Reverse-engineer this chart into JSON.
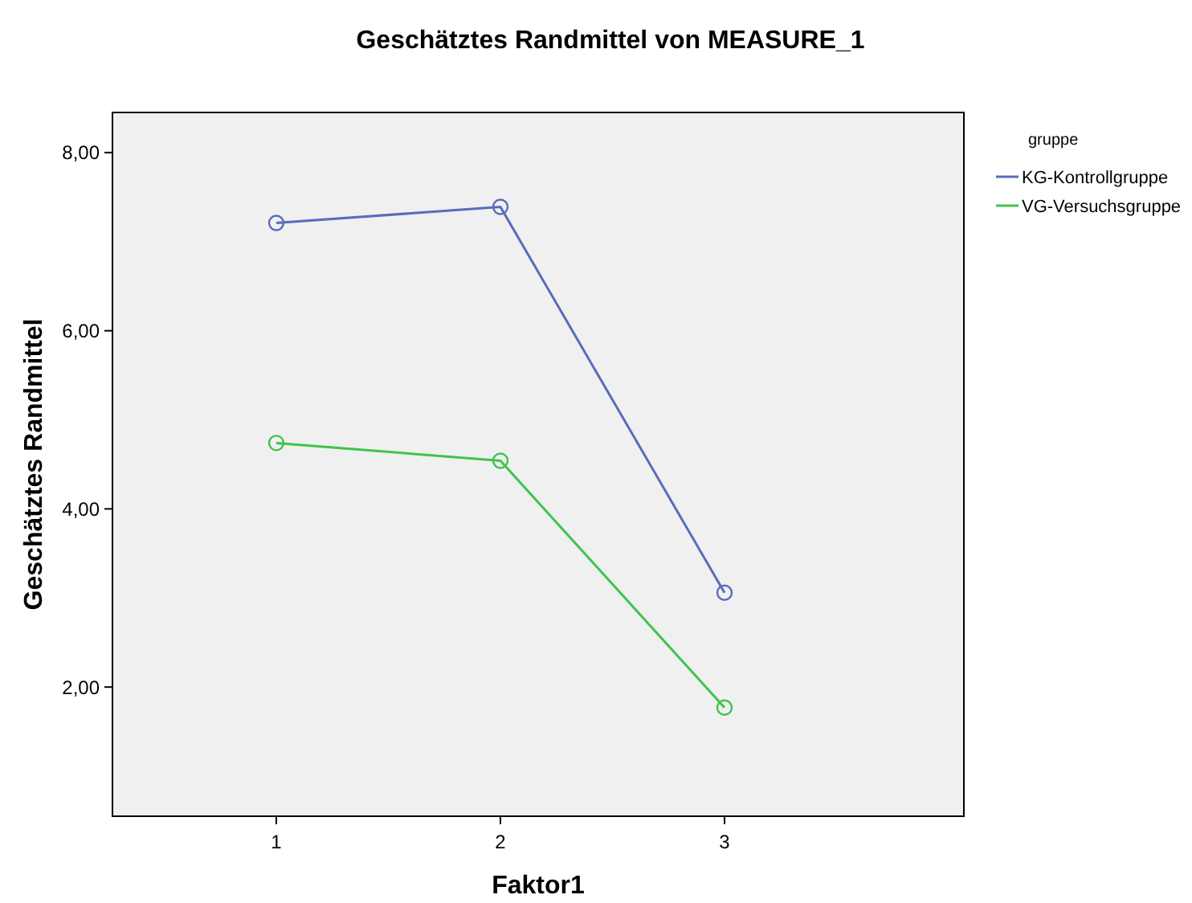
{
  "chart_data": {
    "type": "line",
    "title": "Geschätztes Randmittel von MEASURE_1",
    "xlabel": "Faktor1",
    "ylabel": "Geschätztes Randmittel",
    "legend_title": "gruppe",
    "categories": [
      "1",
      "2",
      "3"
    ],
    "series": [
      {
        "name": "KG-Kontrollgruppe",
        "color": "#5a6bbd",
        "values": [
          7.21,
          7.39,
          3.06
        ]
      },
      {
        "name": "VG-Versuchsgruppe",
        "color": "#3fc34c",
        "values": [
          4.74,
          4.54,
          1.77
        ]
      }
    ],
    "ylim": [
      0.55,
      8.45
    ],
    "yticks": [
      {
        "value": 2,
        "label": "2,00"
      },
      {
        "value": 4,
        "label": "4,00"
      },
      {
        "value": 6,
        "label": "6,00"
      },
      {
        "value": 8,
        "label": "8,00"
      }
    ],
    "marker": "circle",
    "legend": "top right",
    "grid": false
  }
}
